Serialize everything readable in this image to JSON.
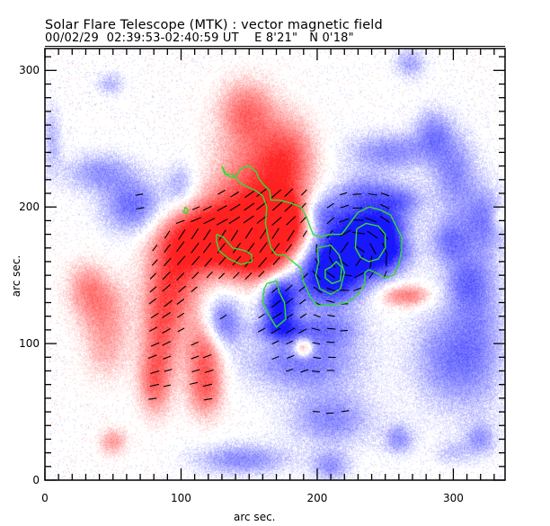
{
  "header": {
    "title": "Solar Flare Telescope (MTK) : vector magnetic field",
    "date": "00/02/29",
    "time_range": "02:39:53-02:40:59 UT",
    "position_ew": "E 8'21\"",
    "position_ns": "N 0'18\""
  },
  "chart_data": {
    "type": "heatmap",
    "title": "Solar Flare Telescope (MTK) : vector magnetic field",
    "subtitle": "00/02/29  02:39:53-02:40:59 UT    E 8'21\"   N 0'18\"",
    "xlabel": "arc sec.",
    "ylabel": "arc sec.",
    "xlim": [
      0,
      338
    ],
    "ylim": [
      0,
      316
    ],
    "x_major_ticks": [
      0,
      100,
      200,
      300
    ],
    "y_major_ticks": [
      0,
      100,
      200,
      300
    ],
    "x_tick_labels": [
      "0",
      "100",
      "200",
      "300"
    ],
    "y_tick_labels": [
      "0",
      "100",
      "200",
      "300"
    ],
    "minor_tick_step": 10,
    "colors": {
      "positive_polarity": "#ff2020",
      "negative_polarity": "#1818ff",
      "contour": "#33dd33",
      "vectors": "#000000"
    },
    "legend": "none",
    "layers": [
      {
        "name": "longitudinal field",
        "kind": "color map (red = positive, blue = negative)"
      },
      {
        "name": "transverse field",
        "kind": "vector ticks"
      },
      {
        "name": "field strength",
        "kind": "contours (green)"
      }
    ],
    "sources": [
      {
        "x": 155,
        "y": 215,
        "sx": 22,
        "sy": 30,
        "amp": 0.55
      },
      {
        "x": 148,
        "y": 270,
        "sx": 14,
        "sy": 16,
        "amp": 0.45
      },
      {
        "x": 178,
        "y": 235,
        "sx": 14,
        "sy": 20,
        "amp": 0.5
      },
      {
        "x": 175,
        "y": 190,
        "sx": 14,
        "sy": 14,
        "amp": 0.95
      },
      {
        "x": 140,
        "y": 180,
        "sx": 25,
        "sy": 18,
        "amp": 0.85
      },
      {
        "x": 110,
        "y": 175,
        "sx": 20,
        "sy": 16,
        "amp": 0.6
      },
      {
        "x": 95,
        "y": 145,
        "sx": 14,
        "sy": 22,
        "amp": 0.55
      },
      {
        "x": 85,
        "y": 105,
        "sx": 10,
        "sy": 26,
        "amp": 0.5
      },
      {
        "x": 80,
        "y": 70,
        "sx": 8,
        "sy": 16,
        "amp": 0.4
      },
      {
        "x": 118,
        "y": 95,
        "sx": 10,
        "sy": 18,
        "amp": 0.55
      },
      {
        "x": 118,
        "y": 65,
        "sx": 9,
        "sy": 14,
        "amp": 0.45
      },
      {
        "x": 160,
        "y": 160,
        "sx": 18,
        "sy": 12,
        "amp": 0.55
      },
      {
        "x": 40,
        "y": 130,
        "sx": 14,
        "sy": 14,
        "amp": 0.35
      },
      {
        "x": 45,
        "y": 100,
        "sx": 12,
        "sy": 18,
        "amp": 0.3
      },
      {
        "x": 30,
        "y": 145,
        "sx": 10,
        "sy": 12,
        "amp": 0.25
      },
      {
        "x": 50,
        "y": 28,
        "sx": 7,
        "sy": 7,
        "amp": 0.35
      },
      {
        "x": 190,
        "y": 97,
        "sx": 5,
        "sy": 5,
        "amp": 0.6
      },
      {
        "x": 265,
        "y": 135,
        "sx": 13,
        "sy": 6,
        "amp": 0.5
      },
      {
        "x": 262,
        "y": 178,
        "sx": 8,
        "sy": 5,
        "amp": 0.15
      },
      {
        "x": 334,
        "y": 192,
        "sx": 4,
        "sy": 6,
        "amp": 0.2
      },
      {
        "x": 232,
        "y": 175,
        "sx": 20,
        "sy": 18,
        "amp": -1.0
      },
      {
        "x": 207,
        "y": 150,
        "sx": 18,
        "sy": 16,
        "amp": -0.9
      },
      {
        "x": 250,
        "y": 175,
        "sx": 12,
        "sy": 14,
        "amp": -0.6
      },
      {
        "x": 172,
        "y": 130,
        "sx": 9,
        "sy": 14,
        "amp": -0.9
      },
      {
        "x": 200,
        "y": 195,
        "sx": 12,
        "sy": 10,
        "amp": -0.4
      },
      {
        "x": 130,
        "y": 115,
        "sx": 10,
        "sy": 14,
        "amp": -0.55
      },
      {
        "x": 65,
        "y": 200,
        "sx": 16,
        "sy": 14,
        "amp": -0.5
      },
      {
        "x": 40,
        "y": 225,
        "sx": 18,
        "sy": 10,
        "amp": -0.35
      },
      {
        "x": 100,
        "y": 215,
        "sx": 8,
        "sy": 12,
        "amp": -0.3
      },
      {
        "x": 175,
        "y": 110,
        "sx": 15,
        "sy": 6,
        "amp": -0.4
      },
      {
        "x": 190,
        "y": 85,
        "sx": 30,
        "sy": 14,
        "amp": -0.45
      },
      {
        "x": 210,
        "y": 110,
        "sx": 18,
        "sy": 10,
        "amp": -0.35
      },
      {
        "x": 210,
        "y": 45,
        "sx": 22,
        "sy": 14,
        "amp": -0.4
      },
      {
        "x": 145,
        "y": 15,
        "sx": 24,
        "sy": 8,
        "amp": -0.4
      },
      {
        "x": 210,
        "y": 10,
        "sx": 10,
        "sy": 8,
        "amp": -0.35
      },
      {
        "x": 260,
        "y": 30,
        "sx": 8,
        "sy": 8,
        "amp": -0.35
      },
      {
        "x": 295,
        "y": 90,
        "sx": 18,
        "sy": 26,
        "amp": -0.4
      },
      {
        "x": 320,
        "y": 105,
        "sx": 14,
        "sy": 40,
        "amp": -0.3
      },
      {
        "x": 310,
        "y": 145,
        "sx": 12,
        "sy": 14,
        "amp": -0.35
      },
      {
        "x": 322,
        "y": 190,
        "sx": 12,
        "sy": 18,
        "amp": -0.4
      },
      {
        "x": 297,
        "y": 175,
        "sx": 10,
        "sy": 12,
        "amp": -0.4
      },
      {
        "x": 300,
        "y": 225,
        "sx": 12,
        "sy": 20,
        "amp": -0.4
      },
      {
        "x": 253,
        "y": 240,
        "sx": 22,
        "sy": 10,
        "amp": -0.4
      },
      {
        "x": 235,
        "y": 210,
        "sx": 16,
        "sy": 10,
        "amp": -0.35
      },
      {
        "x": 262,
        "y": 205,
        "sx": 12,
        "sy": 8,
        "amp": -0.35
      },
      {
        "x": 285,
        "y": 255,
        "sx": 10,
        "sy": 12,
        "amp": -0.35
      },
      {
        "x": 268,
        "y": 305,
        "sx": 8,
        "sy": 8,
        "amp": -0.3
      },
      {
        "x": 48,
        "y": 290,
        "sx": 7,
        "sy": 6,
        "amp": -0.25
      },
      {
        "x": 5,
        "y": 250,
        "sx": 5,
        "sy": 18,
        "amp": -0.25
      },
      {
        "x": 320,
        "y": 30,
        "sx": 8,
        "sy": 8,
        "amp": -0.3
      },
      {
        "x": 300,
        "y": 20,
        "sx": 10,
        "sy": 6,
        "amp": -0.2
      },
      {
        "x": 120,
        "y": 330,
        "sx": 6,
        "sy": 6,
        "amp": -0.2
      }
    ],
    "contours": [
      [
        [
          130,
          230
        ],
        [
          133,
          224
        ],
        [
          136,
          222
        ],
        [
          140,
          222
        ],
        [
          144,
          228
        ],
        [
          150,
          230
        ],
        [
          155,
          226
        ],
        [
          157,
          221
        ],
        [
          160,
          217
        ],
        [
          165,
          212
        ],
        [
          166,
          205
        ],
        [
          172,
          205
        ],
        [
          180,
          203
        ],
        [
          188,
          200
        ],
        [
          192,
          193
        ],
        [
          195,
          185
        ],
        [
          197,
          180
        ],
        [
          202,
          178
        ],
        [
          210,
          180
        ],
        [
          218,
          180
        ],
        [
          224,
          188
        ],
        [
          230,
          196
        ],
        [
          238,
          200
        ],
        [
          246,
          198
        ],
        [
          254,
          194
        ],
        [
          258,
          186
        ],
        [
          262,
          178
        ],
        [
          262,
          168
        ],
        [
          260,
          158
        ],
        [
          256,
          150
        ],
        [
          250,
          148
        ],
        [
          243,
          152
        ],
        [
          238,
          154
        ],
        [
          235,
          152
        ],
        [
          235,
          144
        ],
        [
          230,
          136
        ],
        [
          222,
          130
        ],
        [
          210,
          128
        ],
        [
          200,
          128
        ],
        [
          195,
          134
        ],
        [
          190,
          145
        ],
        [
          188,
          155
        ],
        [
          182,
          160
        ],
        [
          176,
          165
        ],
        [
          170,
          165
        ],
        [
          166,
          170
        ],
        [
          164,
          178
        ],
        [
          162,
          188
        ],
        [
          163,
          200
        ],
        [
          160,
          208
        ],
        [
          155,
          212
        ],
        [
          150,
          214
        ],
        [
          143,
          218
        ],
        [
          138,
          224
        ],
        [
          132,
          224
        ],
        [
          130,
          230
        ]
      ],
      [
        [
          229,
          184
        ],
        [
          236,
          188
        ],
        [
          245,
          186
        ],
        [
          250,
          180
        ],
        [
          250,
          170
        ],
        [
          245,
          162
        ],
        [
          238,
          160
        ],
        [
          232,
          163
        ],
        [
          228,
          170
        ],
        [
          229,
          184
        ]
      ],
      [
        [
          210,
          156
        ],
        [
          214,
          160
        ],
        [
          218,
          156
        ],
        [
          217,
          146
        ],
        [
          211,
          144
        ],
        [
          206,
          148
        ],
        [
          206,
          154
        ],
        [
          210,
          156
        ]
      ],
      [
        [
          200,
          170
        ],
        [
          210,
          172
        ],
        [
          216,
          165
        ],
        [
          220,
          152
        ],
        [
          217,
          140
        ],
        [
          210,
          136
        ],
        [
          202,
          140
        ],
        [
          199,
          150
        ],
        [
          201,
          160
        ],
        [
          200,
          170
        ]
      ],
      [
        [
          163,
          144
        ],
        [
          170,
          146
        ],
        [
          172,
          138
        ],
        [
          176,
          130
        ],
        [
          177,
          118
        ],
        [
          170,
          112
        ],
        [
          165,
          120
        ],
        [
          160,
          130
        ],
        [
          161,
          140
        ],
        [
          163,
          144
        ]
      ],
      [
        [
          103,
          200
        ],
        [
          105,
          198
        ],
        [
          104,
          195
        ],
        [
          102,
          196
        ],
        [
          103,
          200
        ]
      ],
      [
        [
          126,
          180
        ],
        [
          131,
          178
        ],
        [
          138,
          170
        ],
        [
          147,
          168
        ],
        [
          152,
          165
        ],
        [
          152,
          160
        ],
        [
          144,
          158
        ],
        [
          135,
          162
        ],
        [
          128,
          168
        ],
        [
          126,
          175
        ],
        [
          126,
          180
        ]
      ]
    ],
    "vector_regions": [
      {
        "x0": 92,
        "y0": 110,
        "x1": 252,
        "y1": 212,
        "angle": 35,
        "note": "dense vectors over central active region"
      },
      {
        "x0": 65,
        "y0": 55,
        "x1": 125,
        "y1": 110,
        "angle": 40,
        "note": "sparse vectors along trailing positive plage"
      }
    ]
  }
}
